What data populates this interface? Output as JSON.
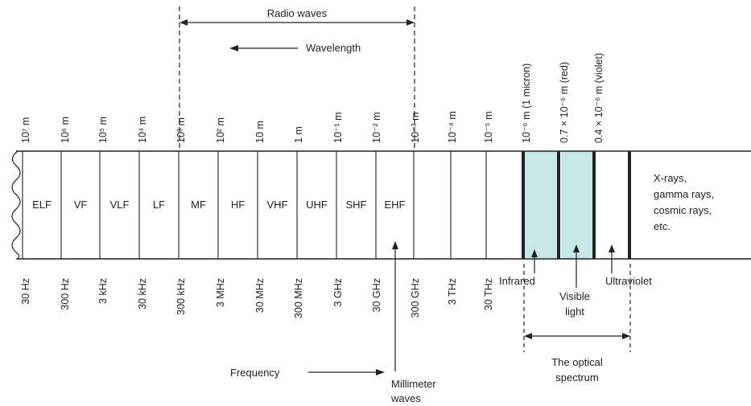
{
  "top_labels": {
    "radio_waves": "Radio waves",
    "wavelength": "Wavelength"
  },
  "wavelength_labels": [
    "10⁷ m",
    "10⁶ m",
    "10⁵ m",
    "10⁴ m",
    "10³ m",
    "10² m",
    "10 m",
    "1 m",
    "10⁻¹ m",
    "10⁻² m",
    "10⁻³ m",
    "10⁻⁴ m",
    "10⁻⁵ m",
    "10⁻⁶ m (1 micron)",
    "0.7 × 10⁻⁶ m (red)",
    "0.4 × 10⁻⁶ m (violet)"
  ],
  "bands": [
    "ELF",
    "VF",
    "VLF",
    "LF",
    "MF",
    "HF",
    "VHF",
    "UHF",
    "SHF",
    "EHF"
  ],
  "high_energy_label": [
    "X-rays,",
    "gamma rays,",
    "cosmic rays,",
    "etc."
  ],
  "frequency_labels": [
    "30 Hz",
    "300 Hz",
    "3 kHz",
    "30 kHz",
    "300 kHz",
    "3 MHz",
    "30 MHz",
    "300 MHz",
    "3 GHz",
    "30 GHz",
    "300 GHz",
    "3 THz",
    "30 THz"
  ],
  "region_labels": {
    "infrared": "Infrared",
    "visible": [
      "Visible",
      "light"
    ],
    "ultraviolet": "Ultraviolet"
  },
  "bottom_labels": {
    "frequency": "Frequency",
    "millimeter_waves": [
      "Millimeter",
      "waves"
    ],
    "optical_spectrum": [
      "The optical",
      "spectrum"
    ]
  },
  "colors": {
    "visible_fill": "#c5e8e6",
    "line": "#222222"
  }
}
